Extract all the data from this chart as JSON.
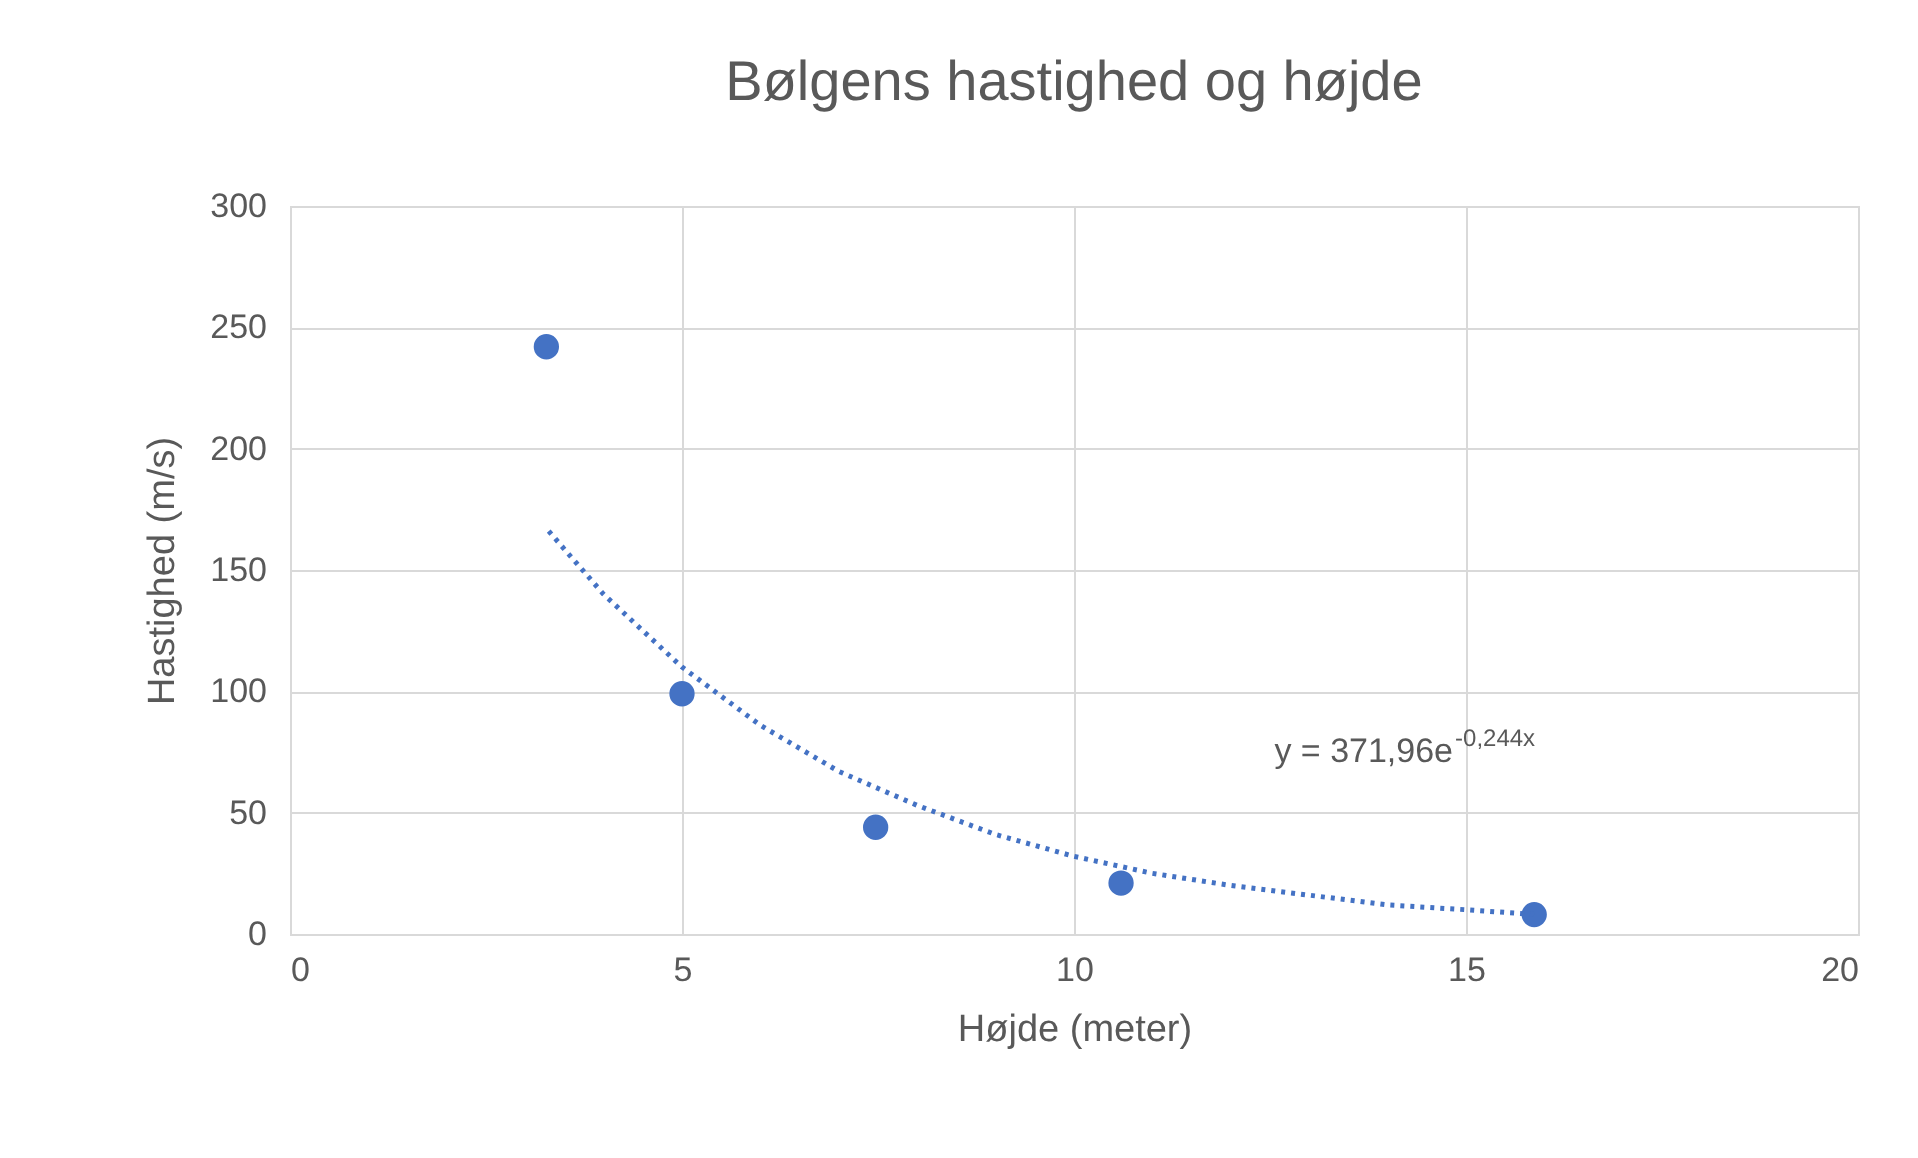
{
  "chart_data": {
    "type": "scatter",
    "title": "Bølgens hastighed og højde",
    "xlabel": "Højde (meter)",
    "ylabel": "Hastighed (m/s)",
    "xlim": [
      0,
      20
    ],
    "xticks": [
      0,
      5,
      10,
      15,
      20
    ],
    "ylim": [
      0,
      300
    ],
    "yticks": [
      0,
      50,
      100,
      150,
      200,
      250,
      300
    ],
    "grid": true,
    "annotations": [
      "y = 371,96e$^{-0,244x}$"
    ],
    "series": [
      {
        "type": "scatter",
        "marker": "circle",
        "color": "#4472c4",
        "x": [
          3.27,
          5.0,
          7.47,
          10.6,
          15.87
        ],
        "values": [
          242,
          99,
          44,
          21,
          8
        ]
      },
      {
        "type": "line",
        "line_style": "dotted",
        "color": "#4472c4",
        "x": [
          3.3,
          4,
          5,
          6,
          7,
          8,
          9,
          10,
          11,
          12,
          13,
          14,
          15,
          15.9
        ],
        "values": [
          166,
          140,
          110,
          86,
          67,
          53,
          41,
          32,
          25,
          20,
          16,
          12,
          10,
          8
        ]
      }
    ]
  }
}
